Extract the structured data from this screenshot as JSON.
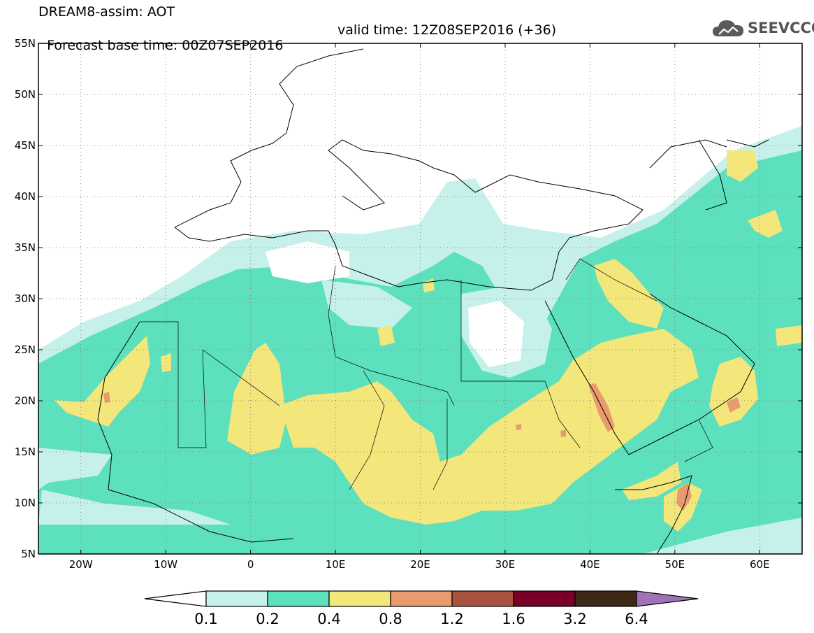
{
  "title": {
    "line1": "DREAM8-assim: AOT",
    "base_time": "Forecast base time: 00Z07SEP2016",
    "valid_time": "valid time: 12Z08SEP2016 (+36)"
  },
  "logo": {
    "text": "SEEVCCC",
    "icon": "cloud-icon",
    "color": "#555555"
  },
  "map": {
    "lon_range": [
      -25,
      65
    ],
    "lat_range": [
      5,
      55
    ],
    "lon_ticks": [
      {
        "value": -20,
        "label": "20W"
      },
      {
        "value": -10,
        "label": "10W"
      },
      {
        "value": 0,
        "label": "0"
      },
      {
        "value": 10,
        "label": "10E"
      },
      {
        "value": 20,
        "label": "20E"
      },
      {
        "value": 30,
        "label": "30E"
      },
      {
        "value": 40,
        "label": "40E"
      },
      {
        "value": 50,
        "label": "50E"
      },
      {
        "value": 60,
        "label": "60E"
      }
    ],
    "lat_ticks": [
      {
        "value": 55,
        "label": "55N"
      },
      {
        "value": 50,
        "label": "50N"
      },
      {
        "value": 45,
        "label": "45N"
      },
      {
        "value": 40,
        "label": "40N"
      },
      {
        "value": 35,
        "label": "35N"
      },
      {
        "value": 30,
        "label": "30N"
      },
      {
        "value": 25,
        "label": "25N"
      },
      {
        "value": 20,
        "label": "20N"
      },
      {
        "value": 15,
        "label": "15N"
      },
      {
        "value": 10,
        "label": "10N"
      },
      {
        "value": 5,
        "label": "5N"
      }
    ],
    "grid": "dotted"
  },
  "colorbar": {
    "labels": [
      "0.1",
      "0.2",
      "0.4",
      "0.8",
      "1.2",
      "1.6",
      "3.2",
      "6.4"
    ],
    "colors": [
      "#ffffff",
      "#c6f0ea",
      "#5ce0bd",
      "#f3e67a",
      "#e99a6e",
      "#a8523f",
      "#7a0028",
      "#3d2a16",
      "#9e73b8"
    ]
  }
}
